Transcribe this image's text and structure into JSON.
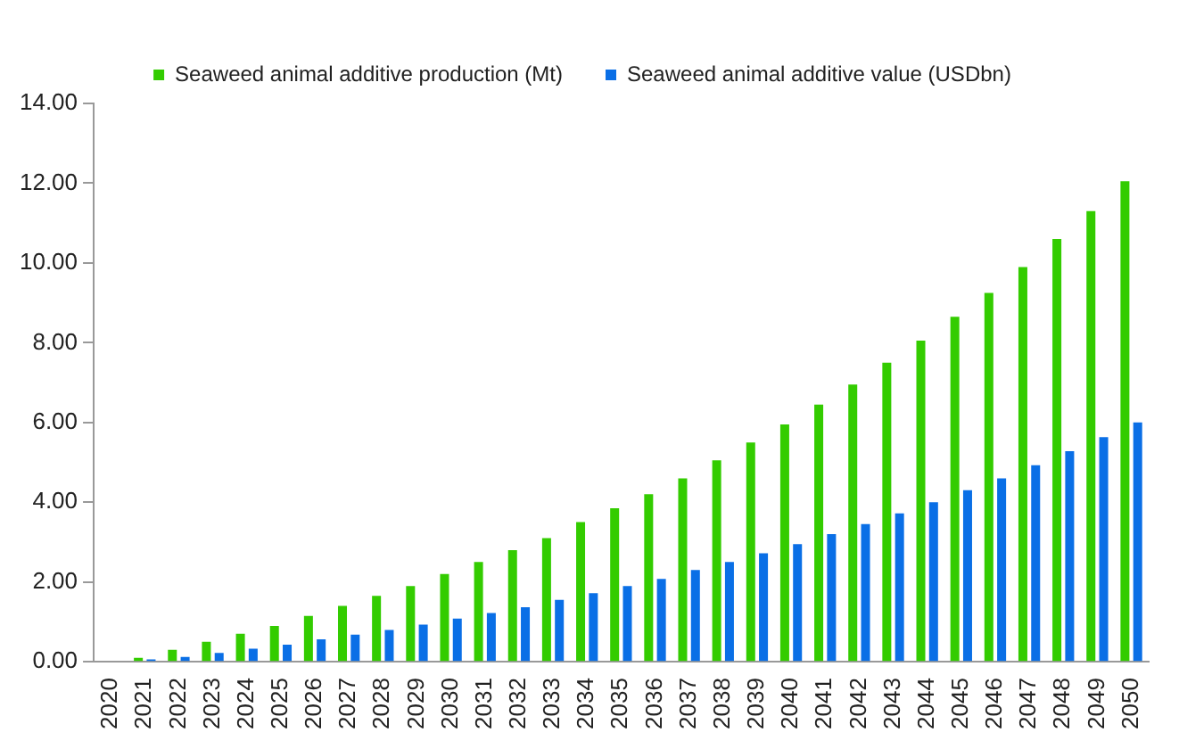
{
  "chart_data": {
    "type": "bar",
    "categories": [
      "2020",
      "2021",
      "2022",
      "2023",
      "2024",
      "2025",
      "2026",
      "2027",
      "2028",
      "2029",
      "2030",
      "2031",
      "2032",
      "2033",
      "2034",
      "2035",
      "2036",
      "2037",
      "2038",
      "2039",
      "2040",
      "2041",
      "2042",
      "2043",
      "2044",
      "2045",
      "2046",
      "2047",
      "2048",
      "2049",
      "2050"
    ],
    "series": [
      {
        "name": "Seaweed animal additive production (Mt)",
        "color": "#33cc00",
        "values": [
          0,
          0.1,
          0.3,
          0.5,
          0.7,
          0.9,
          1.15,
          1.4,
          1.65,
          1.9,
          2.2,
          2.5,
          2.8,
          3.1,
          3.5,
          3.85,
          4.2,
          4.6,
          5.05,
          5.5,
          5.95,
          6.45,
          6.95,
          7.5,
          8.05,
          8.65,
          9.25,
          9.9,
          10.6,
          11.3,
          12.05
        ]
      },
      {
        "name": "Seaweed animal additive value (USDbn)",
        "color": "#0a6fe6",
        "values": [
          0,
          0.06,
          0.12,
          0.22,
          0.33,
          0.43,
          0.56,
          0.68,
          0.8,
          0.93,
          1.08,
          1.22,
          1.37,
          1.55,
          1.72,
          1.9,
          2.08,
          2.3,
          2.5,
          2.72,
          2.95,
          3.2,
          3.45,
          3.72,
          4.0,
          4.3,
          4.6,
          4.93,
          5.28,
          5.63,
          6.0
        ]
      }
    ],
    "ylim": [
      0,
      14
    ],
    "yticks": [
      {
        "value": 0,
        "label": "0.00"
      },
      {
        "value": 2,
        "label": "2.00"
      },
      {
        "value": 4,
        "label": "4.00"
      },
      {
        "value": 6,
        "label": "6.00"
      },
      {
        "value": 8,
        "label": "8.00"
      },
      {
        "value": 10,
        "label": "10.00"
      },
      {
        "value": 12,
        "label": "12.00"
      },
      {
        "value": 14,
        "label": "14.00"
      }
    ],
    "grid": false,
    "legend": "top"
  }
}
